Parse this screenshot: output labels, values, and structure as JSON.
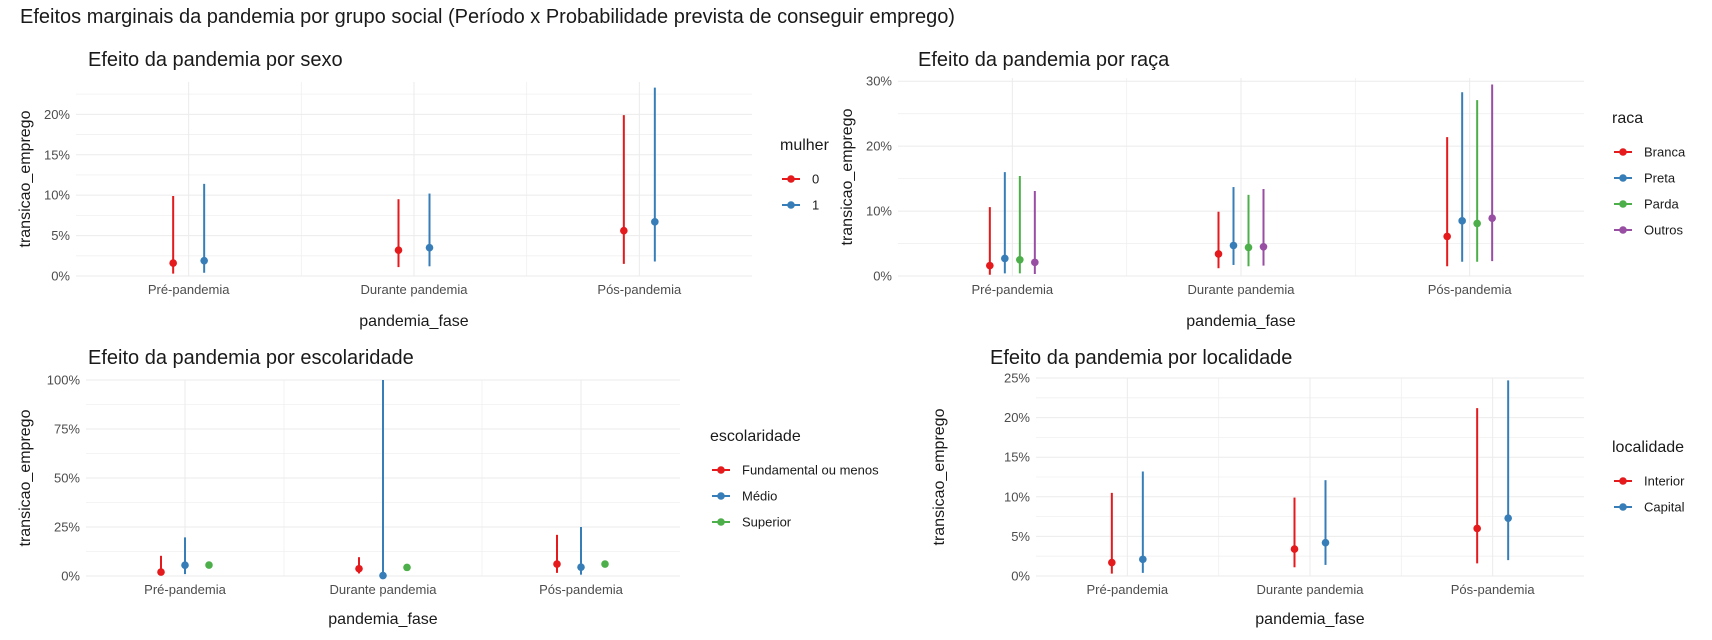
{
  "title": "Efeitos marginais da pandemia por grupo social (Período x Probabilidade prevista de conseguir emprego)",
  "chart_data": [
    {
      "type": "errorbar",
      "title": "Efeito da pandemia por sexo",
      "xlabel": "pandemia_fase",
      "ylabel": "transicao_emprego",
      "categories": [
        "Pré-pandemia",
        "Durante pandemia",
        "Pós-pandemia"
      ],
      "ylim": [
        0,
        0.24
      ],
      "yticks": [
        0,
        0.05,
        0.1,
        0.15,
        0.2
      ],
      "ytick_labels": [
        "0%",
        "5%",
        "10%",
        "15%",
        "20%"
      ],
      "legend_title": "mulher",
      "legend_position": "right",
      "series": [
        {
          "name": "0",
          "color": "#e41a1c",
          "values": [
            0.016,
            0.032,
            0.056
          ],
          "lower": [
            0.003,
            0.011,
            0.015
          ],
          "upper": [
            0.099,
            0.095,
            0.199
          ]
        },
        {
          "name": "1",
          "color": "#377eb8",
          "values": [
            0.019,
            0.035,
            0.067
          ],
          "lower": [
            0.004,
            0.012,
            0.018
          ],
          "upper": [
            0.114,
            0.102,
            0.233
          ]
        }
      ]
    },
    {
      "type": "errorbar",
      "title": "Efeito da pandemia por raça",
      "xlabel": "pandemia_fase",
      "ylabel": "transicao_emprego",
      "categories": [
        "Pré-pandemia",
        "Durante pandemia",
        "Pós-pandemia"
      ],
      "ylim": [
        0,
        0.305
      ],
      "yticks": [
        0,
        0.1,
        0.2,
        0.3
      ],
      "ytick_labels": [
        "0%",
        "10%",
        "20%",
        "30%"
      ],
      "legend_title": "raca",
      "legend_position": "right",
      "series": [
        {
          "name": "Branca",
          "color": "#e41a1c",
          "values": [
            0.016,
            0.034,
            0.061
          ],
          "lower": [
            0.002,
            0.012,
            0.015
          ],
          "upper": [
            0.106,
            0.099,
            0.214
          ]
        },
        {
          "name": "Preta",
          "color": "#377eb8",
          "values": [
            0.027,
            0.047,
            0.085
          ],
          "lower": [
            0.004,
            0.017,
            0.022
          ],
          "upper": [
            0.16,
            0.137,
            0.283
          ]
        },
        {
          "name": "Parda",
          "color": "#4daf4a",
          "values": [
            0.025,
            0.044,
            0.081
          ],
          "lower": [
            0.004,
            0.015,
            0.022
          ],
          "upper": [
            0.154,
            0.125,
            0.271
          ]
        },
        {
          "name": "Outros",
          "color": "#984ea3",
          "values": [
            0.021,
            0.045,
            0.089
          ],
          "lower": [
            0.003,
            0.016,
            0.023
          ],
          "upper": [
            0.131,
            0.134,
            0.295
          ]
        }
      ]
    },
    {
      "type": "errorbar",
      "title": "Efeito da pandemia por escolaridade",
      "xlabel": "pandemia_fase",
      "ylabel": "transicao_emprego",
      "categories": [
        "Pré-pandemia",
        "Durante pandemia",
        "Pós-pandemia"
      ],
      "ylim": [
        0,
        1.0
      ],
      "yticks": [
        0,
        0.25,
        0.5,
        0.75,
        1.0
      ],
      "ytick_labels": [
        "0%",
        "25%",
        "50%",
        "75%",
        "100%"
      ],
      "legend_title": "escolaridade",
      "legend_position": "right",
      "series": [
        {
          "name": "Fundamental ou menos",
          "color": "#e41a1c",
          "values": [
            0.02,
            0.037,
            0.061
          ],
          "lower": [
            0.004,
            0.013,
            0.016
          ],
          "upper": [
            0.103,
            0.096,
            0.21
          ]
        },
        {
          "name": "Médio",
          "color": "#377eb8",
          "values": [
            0.055,
            0.002,
            0.045
          ],
          "lower": [
            0.01,
            0.0,
            0.007
          ],
          "upper": [
            0.197,
            1.0,
            0.25
          ]
        },
        {
          "name": "Superior",
          "color": "#4daf4a",
          "values": [
            0.056,
            0.044,
            0.061
          ],
          "lower": [
            0.047,
            0.037,
            0.052
          ],
          "upper": [
            0.065,
            0.051,
            0.07
          ]
        }
      ]
    },
    {
      "type": "errorbar",
      "title": "Efeito da pandemia por localidade",
      "xlabel": "pandemia_fase",
      "ylabel": "transicao_emprego",
      "categories": [
        "Pré-pandemia",
        "Durante pandemia",
        "Pós-pandemia"
      ],
      "ylim": [
        0,
        0.25
      ],
      "yticks": [
        0,
        0.05,
        0.1,
        0.15,
        0.2,
        0.25
      ],
      "ytick_labels": [
        "0%",
        "5%",
        "10%",
        "15%",
        "20%",
        "25%"
      ],
      "legend_title": "localidade",
      "legend_position": "right",
      "series": [
        {
          "name": "Interior",
          "color": "#e41a1c",
          "values": [
            0.017,
            0.034,
            0.06
          ],
          "lower": [
            0.003,
            0.011,
            0.016
          ],
          "upper": [
            0.105,
            0.099,
            0.212
          ]
        },
        {
          "name": "Capital",
          "color": "#377eb8",
          "values": [
            0.021,
            0.042,
            0.073
          ],
          "lower": [
            0.004,
            0.014,
            0.02
          ],
          "upper": [
            0.132,
            0.121,
            0.247
          ]
        }
      ]
    }
  ]
}
